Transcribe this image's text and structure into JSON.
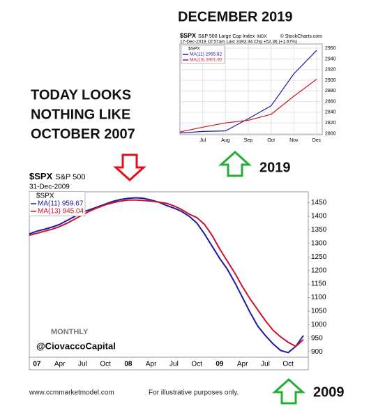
{
  "headline": "DECEMBER 2019",
  "left_text": [
    "TODAY LOOKS",
    "NOTHING LIKE",
    "OCTOBER 2007"
  ],
  "label_2019": "2019",
  "label_2009": "2009",
  "footer": {
    "website": "www.ccmmarketmodel.com",
    "note": "For illustrative purposes only."
  },
  "chart_data": [
    {
      "type": "line",
      "symbol": "$SPX",
      "title": "S&P 500 Large Cap Index",
      "exchange": "INDX",
      "source": "© StockCharts.com",
      "quote": "17-Dec-2019 10:57am  Last 3193.34  Chg +52.36 (+1.67%)",
      "legend_title": "$SPX",
      "categories": [
        null,
        "Jul",
        "Aug",
        "Sep",
        "Oct",
        "Nov",
        "Dec"
      ],
      "series": [
        {
          "name": "MA(11) 2955.82",
          "color": "#1a1aa6",
          "values": [
            2801,
            2804,
            2805,
            2828,
            2852,
            2912,
            2956
          ]
        },
        {
          "name": "MA(13) 2901.92",
          "color": "#d0102a",
          "values": [
            2803,
            2812,
            2820,
            2825,
            2836,
            2870,
            2902
          ]
        }
      ],
      "ylim": [
        2798,
        2968
      ],
      "yticks": [
        2800,
        2820,
        2840,
        2860,
        2880,
        2900,
        2920,
        2940,
        2960
      ],
      "grid": true
    },
    {
      "type": "line",
      "symbol": "$SPX",
      "title": "S&P 500",
      "date": "31-Dec-2009",
      "legend_title": "$SPX",
      "watermark": "MONTHLY",
      "annotation": "@CiovaccoCapital",
      "categories": [
        null,
        "07",
        null,
        null,
        "Apr",
        null,
        null,
        "Jul",
        null,
        null,
        "Oct",
        null,
        null,
        "08",
        null,
        null,
        "Apr",
        null,
        null,
        "Jul",
        null,
        null,
        "Oct",
        null,
        null,
        "09",
        null,
        null,
        "Apr",
        null,
        null,
        "Jul",
        null,
        null,
        "Oct",
        null,
        null
      ],
      "series": [
        {
          "name": "MA(11) 959.67",
          "color": "#1a1aa6",
          "values": [
            1335,
            1345,
            1352,
            1360,
            1370,
            1385,
            1400,
            1415,
            1425,
            1435,
            1445,
            1455,
            1462,
            1466,
            1468,
            1466,
            1460,
            1452,
            1440,
            1430,
            1418,
            1400,
            1375,
            1335,
            1290,
            1245,
            1205,
            1155,
            1100,
            1045,
            995,
            960,
            930,
            905,
            897,
            920,
            960
          ]
        },
        {
          "name": "MA(13) 945.04",
          "color": "#d0102a",
          "values": [
            1330,
            1337,
            1345,
            1352,
            1362,
            1375,
            1390,
            1405,
            1420,
            1432,
            1442,
            1450,
            1456,
            1460,
            1460,
            1458,
            1456,
            1452,
            1448,
            1438,
            1425,
            1408,
            1395,
            1370,
            1330,
            1280,
            1235,
            1190,
            1140,
            1095,
            1055,
            1015,
            980,
            955,
            935,
            920,
            945
          ]
        }
      ],
      "ylim": [
        880,
        1490
      ],
      "yticks": [
        900,
        950,
        1000,
        1050,
        1100,
        1150,
        1200,
        1250,
        1300,
        1350,
        1400,
        1450
      ],
      "grid": false
    }
  ]
}
